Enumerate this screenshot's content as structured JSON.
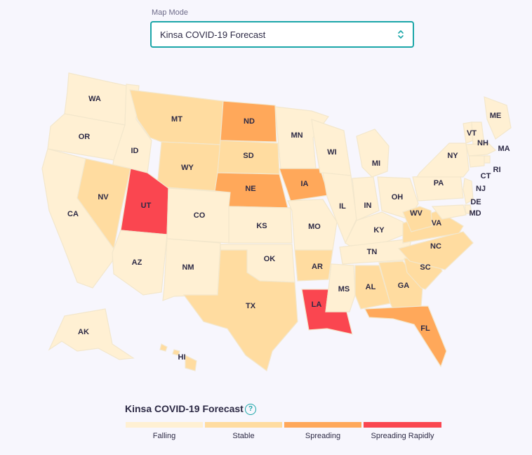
{
  "header": {
    "map_mode_label": "Map Mode",
    "selected_option": "Kinsa COVID-19 Forecast"
  },
  "colors": {
    "falling": "#fff0d3",
    "stable": "#ffdca0",
    "spreading": "#ffa85a",
    "spreading_rapidly": "#fa4650",
    "accent": "#1ba6a8",
    "state_border": "#f3e7cc"
  },
  "map": {
    "states": {
      "WA": "falling",
      "OR": "falling",
      "CA": "falling",
      "ID": "falling",
      "NV": "stable",
      "MT": "stable",
      "WY": "stable",
      "UT": "spreading_rapidly",
      "AZ": "falling",
      "CO": "falling",
      "NM": "falling",
      "ND": "spreading",
      "SD": "stable",
      "NE": "spreading",
      "KS": "falling",
      "OK": "falling",
      "TX": "stable",
      "MN": "falling",
      "IA": "spreading",
      "MO": "falling",
      "AR": "stable",
      "LA": "spreading_rapidly",
      "WI": "falling",
      "IL": "falling",
      "MS": "falling",
      "MI": "falling",
      "IN": "falling",
      "KY": "falling",
      "TN": "falling",
      "AL": "stable",
      "OH": "falling",
      "GA": "stable",
      "FL": "spreading",
      "SC": "stable",
      "NC": "stable",
      "VA": "stable",
      "WV": "stable",
      "PA": "falling",
      "NY": "falling",
      "ME": "falling",
      "VT": "falling",
      "NH": "falling",
      "MA": "falling",
      "RI": "falling",
      "CT": "falling",
      "NJ": "falling",
      "DE": "falling",
      "MD": "falling",
      "AK": "falling",
      "HI": "stable"
    }
  },
  "legend": {
    "title": "Kinsa COVID-19 Forecast",
    "help_icon": "question-circle-icon",
    "items": [
      {
        "key": "falling",
        "label": "Falling"
      },
      {
        "key": "stable",
        "label": "Stable"
      },
      {
        "key": "spreading",
        "label": "Spreading"
      },
      {
        "key": "spreading_rapidly",
        "label": "Spreading Rapidly"
      }
    ]
  }
}
